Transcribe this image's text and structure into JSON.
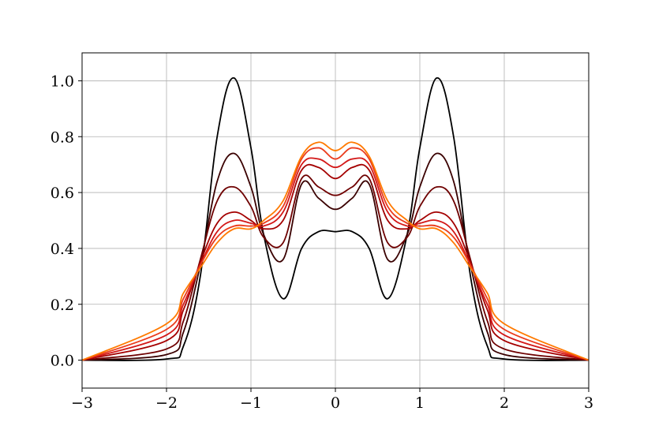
{
  "chart_data": {
    "type": "line",
    "title": "",
    "xlabel": "",
    "ylabel": "",
    "xlim": [
      -3,
      3
    ],
    "ylim": [
      -0.1,
      1.1
    ],
    "grid": true,
    "legend": "none",
    "x_ticks": [
      -3,
      -2,
      -1,
      0,
      1,
      2,
      3
    ],
    "x_tick_labels": [
      "−3",
      "−2",
      "−1",
      "0",
      "1",
      "2",
      "3"
    ],
    "y_ticks": [
      0.0,
      0.2,
      0.4,
      0.6,
      0.8,
      1.0
    ],
    "y_tick_labels": [
      "0.0",
      "0.2",
      "0.4",
      "0.6",
      "0.8",
      "1.0"
    ],
    "x": [
      -3.0,
      -2.0,
      -1.8,
      -1.6,
      -1.4,
      -1.2,
      -1.0,
      -0.85,
      -0.62,
      -0.4,
      -0.2,
      0.0,
      0.2,
      0.4,
      0.62,
      0.85,
      1.0,
      1.2,
      1.4,
      1.6,
      1.8,
      2.0,
      3.0
    ],
    "series": [
      {
        "color": "#000000",
        "values": [
          0.0,
          0.004,
          0.05,
          0.3,
          0.8,
          1.01,
          0.76,
          0.45,
          0.22,
          0.4,
          0.46,
          0.46,
          0.46,
          0.4,
          0.22,
          0.45,
          0.76,
          1.01,
          0.8,
          0.3,
          0.05,
          0.004,
          0.0
        ]
      },
      {
        "color": "#3a0000",
        "values": [
          0.0,
          0.02,
          0.1,
          0.34,
          0.64,
          0.74,
          0.62,
          0.45,
          0.36,
          0.63,
          0.58,
          0.54,
          0.58,
          0.63,
          0.36,
          0.45,
          0.62,
          0.74,
          0.64,
          0.34,
          0.1,
          0.02,
          0.0
        ]
      },
      {
        "color": "#6e0000",
        "values": [
          0.0,
          0.04,
          0.14,
          0.36,
          0.57,
          0.62,
          0.55,
          0.44,
          0.42,
          0.65,
          0.62,
          0.59,
          0.62,
          0.65,
          0.42,
          0.44,
          0.55,
          0.62,
          0.57,
          0.36,
          0.14,
          0.04,
          0.0
        ]
      },
      {
        "color": "#a40000",
        "values": [
          0.0,
          0.07,
          0.18,
          0.35,
          0.49,
          0.53,
          0.5,
          0.47,
          0.5,
          0.68,
          0.69,
          0.65,
          0.69,
          0.68,
          0.5,
          0.47,
          0.5,
          0.53,
          0.49,
          0.35,
          0.18,
          0.07,
          0.0
        ]
      },
      {
        "color": "#d31818",
        "values": [
          0.0,
          0.09,
          0.2,
          0.34,
          0.46,
          0.5,
          0.49,
          0.48,
          0.53,
          0.7,
          0.72,
          0.69,
          0.72,
          0.7,
          0.53,
          0.48,
          0.49,
          0.5,
          0.46,
          0.34,
          0.2,
          0.09,
          0.0
        ]
      },
      {
        "color": "#ea3b1c",
        "values": [
          0.0,
          0.11,
          0.22,
          0.34,
          0.44,
          0.48,
          0.48,
          0.49,
          0.55,
          0.72,
          0.76,
          0.72,
          0.76,
          0.72,
          0.55,
          0.49,
          0.48,
          0.48,
          0.44,
          0.34,
          0.22,
          0.11,
          0.0
        ]
      },
      {
        "color": "#ff7a00",
        "values": [
          0.0,
          0.13,
          0.24,
          0.33,
          0.42,
          0.47,
          0.47,
          0.5,
          0.57,
          0.73,
          0.78,
          0.75,
          0.78,
          0.73,
          0.57,
          0.5,
          0.47,
          0.47,
          0.42,
          0.33,
          0.24,
          0.13,
          0.0
        ]
      }
    ]
  }
}
